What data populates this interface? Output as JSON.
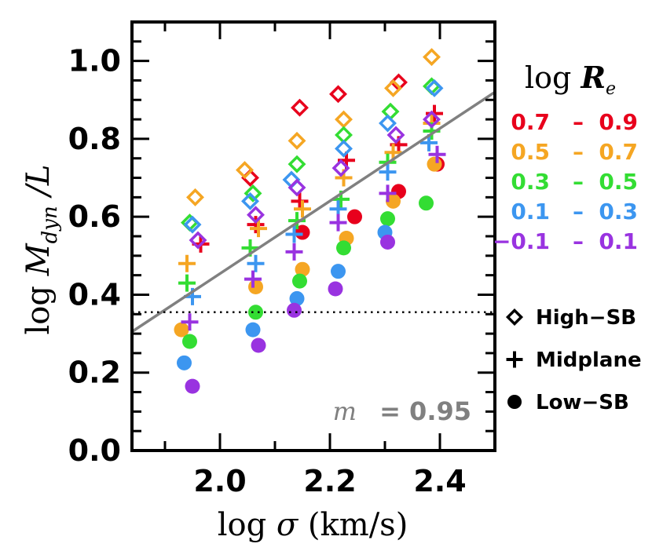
{
  "chart_data": {
    "type": "scatter",
    "title": "",
    "xlabel": "log σ (km/s)",
    "ylabel": "log M_dyn / L",
    "ylabel_parts": {
      "prefix": "log ",
      "symbol": "M",
      "sub": "dyn",
      "suffix": " /L"
    },
    "xlabel_parts": {
      "prefix": "log ",
      "symbol": "σ",
      "suffix": " (km/s)"
    },
    "xlim": [
      1.84,
      2.5
    ],
    "ylim": [
      0.0,
      1.1
    ],
    "xticks": [
      "2.0",
      "2.2",
      "2.4"
    ],
    "xtick_values": [
      2.0,
      2.2,
      2.4
    ],
    "yticks": [
      "0.0",
      "0.2",
      "0.4",
      "0.6",
      "0.8",
      "1.0"
    ],
    "ytick_values": [
      0.0,
      0.2,
      0.4,
      0.6,
      0.8,
      1.0
    ],
    "fit_line": {
      "x": [
        1.84,
        2.5
      ],
      "y": [
        0.305,
        0.92
      ],
      "color": "#808080"
    },
    "hline": {
      "y": 0.355,
      "style": "dotted"
    },
    "annotation": {
      "prefix": "m",
      "value": "= 0.95",
      "color": "#808080"
    },
    "legend_title": {
      "prefix": "log ",
      "symbol": "R",
      "sub": "e"
    },
    "bins": [
      {
        "label_lo": "0.7",
        "sep": "–",
        "label_hi": "0.9",
        "color": "#e8001c"
      },
      {
        "label_lo": "0.5",
        "sep": "–",
        "label_hi": "0.7",
        "color": "#f5a623"
      },
      {
        "label_lo": "0.3",
        "sep": "–",
        "label_hi": "0.5",
        "color": "#33dd33"
      },
      {
        "label_lo": "0.1",
        "sep": "–",
        "label_hi": "0.3",
        "color": "#3c96f0"
      },
      {
        "label_lo": "−0.1",
        "sep": "–",
        "label_hi": "0.1",
        "color": "#9933e0"
      }
    ],
    "marker_legend": [
      {
        "marker": "diamond",
        "label": "High−SB"
      },
      {
        "marker": "plus",
        "label": "Midplane"
      },
      {
        "marker": "circle",
        "label": "Low−SB"
      }
    ],
    "series": [
      {
        "name": "High-SB 0.7–0.9",
        "marker": "diamond",
        "bin": 0,
        "points": [
          [
            2.055,
            0.7
          ],
          [
            2.145,
            0.88
          ],
          [
            2.215,
            0.915
          ],
          [
            2.325,
            0.945
          ]
        ]
      },
      {
        "name": "High-SB 0.5–0.7",
        "marker": "diamond",
        "bin": 1,
        "points": [
          [
            1.955,
            0.65
          ],
          [
            2.045,
            0.72
          ],
          [
            2.14,
            0.795
          ],
          [
            2.225,
            0.85
          ],
          [
            2.315,
            0.93
          ],
          [
            2.385,
            1.01
          ]
        ]
      },
      {
        "name": "High-SB 0.3–0.5",
        "marker": "diamond",
        "bin": 2,
        "points": [
          [
            1.945,
            0.585
          ],
          [
            2.06,
            0.66
          ],
          [
            2.14,
            0.735
          ],
          [
            2.225,
            0.81
          ],
          [
            2.31,
            0.87
          ],
          [
            2.385,
            0.935
          ]
        ]
      },
      {
        "name": "High-SB 0.1–0.3",
        "marker": "diamond",
        "bin": 3,
        "points": [
          [
            1.95,
            0.58
          ],
          [
            2.055,
            0.64
          ],
          [
            2.13,
            0.695
          ],
          [
            2.225,
            0.775
          ],
          [
            2.305,
            0.84
          ],
          [
            2.39,
            0.93
          ]
        ]
      },
      {
        "name": "High-SB -0.1–0.1",
        "marker": "diamond",
        "bin": 4,
        "points": [
          [
            1.96,
            0.54
          ],
          [
            2.065,
            0.605
          ],
          [
            2.14,
            0.675
          ],
          [
            2.22,
            0.725
          ],
          [
            2.32,
            0.81
          ],
          [
            2.385,
            0.85
          ]
        ]
      },
      {
        "name": "Midplane 0.7–0.9",
        "marker": "plus",
        "bin": 0,
        "points": [
          [
            1.965,
            0.53
          ],
          [
            2.065,
            0.58
          ],
          [
            2.145,
            0.64
          ],
          [
            2.23,
            0.745
          ],
          [
            2.325,
            0.785
          ],
          [
            2.39,
            0.865
          ]
        ]
      },
      {
        "name": "Midplane 0.5–0.7",
        "marker": "plus",
        "bin": 1,
        "points": [
          [
            1.94,
            0.48
          ],
          [
            2.07,
            0.57
          ],
          [
            2.15,
            0.62
          ],
          [
            2.225,
            0.7
          ],
          [
            2.315,
            0.765
          ],
          [
            2.385,
            0.84
          ]
        ]
      },
      {
        "name": "Midplane 0.3–0.5",
        "marker": "plus",
        "bin": 2,
        "points": [
          [
            1.94,
            0.43
          ],
          [
            2.055,
            0.52
          ],
          [
            2.14,
            0.59
          ],
          [
            2.22,
            0.645
          ],
          [
            2.305,
            0.74
          ],
          [
            2.385,
            0.82
          ]
        ]
      },
      {
        "name": "Midplane 0.1–0.3",
        "marker": "plus",
        "bin": 3,
        "points": [
          [
            1.95,
            0.395
          ],
          [
            2.065,
            0.48
          ],
          [
            2.135,
            0.555
          ],
          [
            2.215,
            0.62
          ],
          [
            2.305,
            0.715
          ],
          [
            2.38,
            0.79
          ]
        ]
      },
      {
        "name": "Midplane -0.1–0.1",
        "marker": "plus",
        "bin": 4,
        "points": [
          [
            1.945,
            0.33
          ],
          [
            2.06,
            0.44
          ],
          [
            2.135,
            0.51
          ],
          [
            2.215,
            0.585
          ],
          [
            2.305,
            0.66
          ],
          [
            2.395,
            0.76
          ]
        ]
      },
      {
        "name": "Low-SB 0.7–0.9",
        "marker": "circle",
        "bin": 0,
        "points": [
          [
            2.15,
            0.56
          ],
          [
            2.245,
            0.6
          ],
          [
            2.325,
            0.665
          ],
          [
            2.395,
            0.735
          ]
        ]
      },
      {
        "name": "Low-SB 0.5–0.7",
        "marker": "circle",
        "bin": 1,
        "points": [
          [
            1.93,
            0.31
          ],
          [
            2.065,
            0.42
          ],
          [
            2.15,
            0.465
          ],
          [
            2.23,
            0.545
          ],
          [
            2.315,
            0.64
          ],
          [
            2.39,
            0.735
          ]
        ]
      },
      {
        "name": "Low-SB 0.3–0.5",
        "marker": "circle",
        "bin": 2,
        "points": [
          [
            1.945,
            0.28
          ],
          [
            2.065,
            0.355
          ],
          [
            2.145,
            0.435
          ],
          [
            2.225,
            0.52
          ],
          [
            2.305,
            0.595
          ],
          [
            2.375,
            0.635
          ]
        ]
      },
      {
        "name": "Low-SB 0.1–0.3",
        "marker": "circle",
        "bin": 3,
        "points": [
          [
            1.935,
            0.225
          ],
          [
            2.06,
            0.31
          ],
          [
            2.14,
            0.39
          ],
          [
            2.215,
            0.46
          ],
          [
            2.3,
            0.56
          ]
        ]
      },
      {
        "name": "Low-SB -0.1–0.1",
        "marker": "circle",
        "bin": 4,
        "points": [
          [
            1.95,
            0.165
          ],
          [
            2.07,
            0.27
          ],
          [
            2.135,
            0.36
          ],
          [
            2.21,
            0.415
          ],
          [
            2.305,
            0.535
          ]
        ]
      }
    ]
  }
}
